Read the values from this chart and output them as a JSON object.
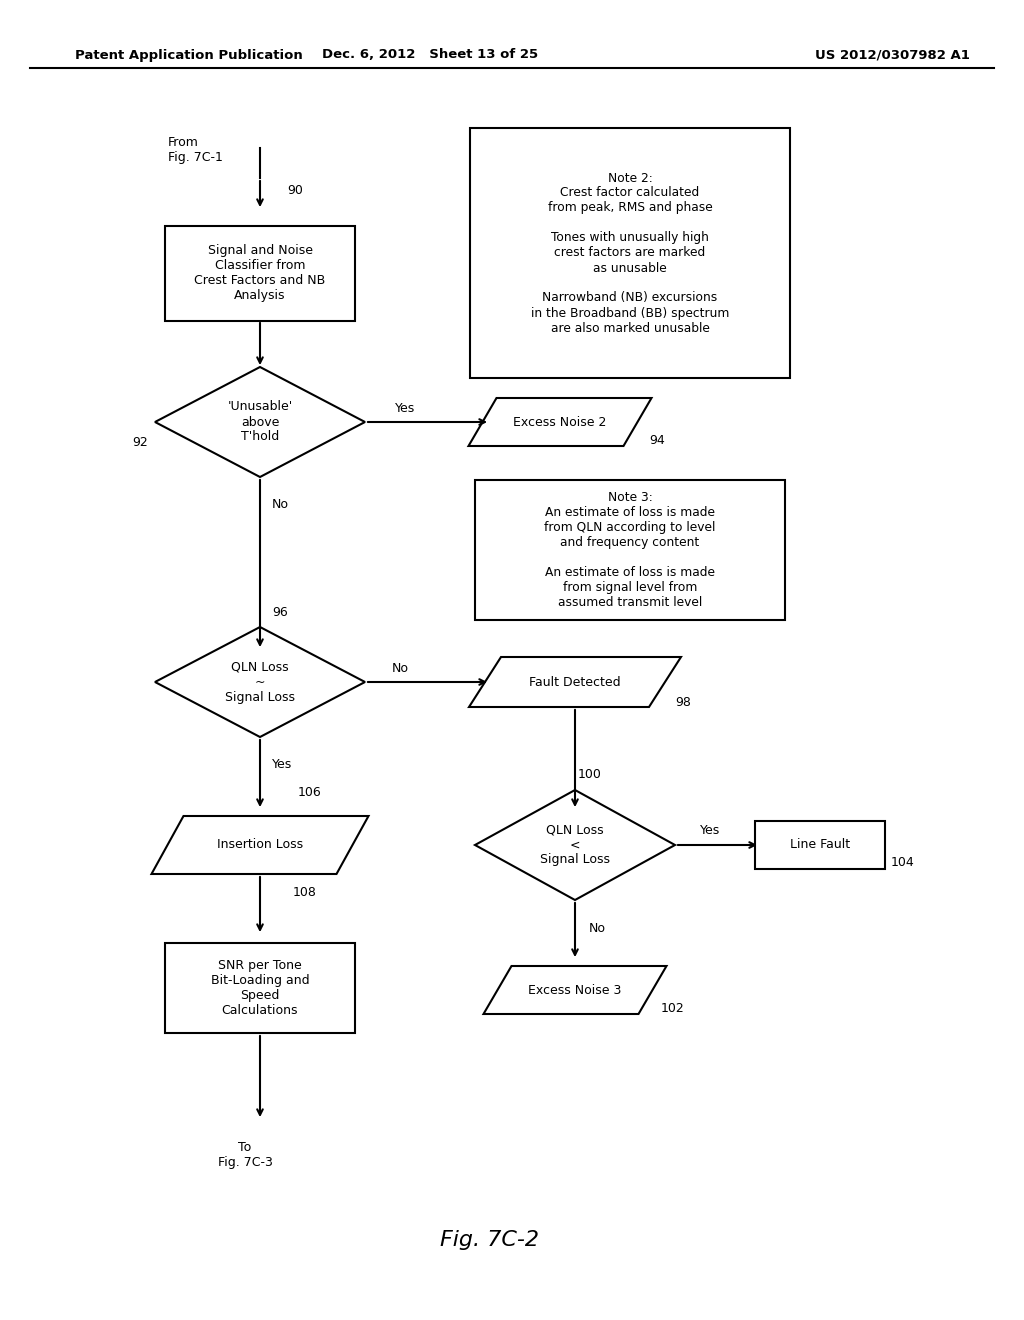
{
  "title": "Fig. 7C-2",
  "header_left": "Patent Application Publication",
  "header_mid": "Dec. 6, 2012   Sheet 13 of 25",
  "header_right": "US 2012/0307982 A1",
  "bg_color": "#ffffff",
  "text_color": "#000000",
  "from_text": "From\nFig. 7C-1",
  "to_text": "To\nFig. 7C-3",
  "fig_label": "Fig. 7C-2",
  "box90_text": "Signal and Noise\nClassifier from\nCrest Factors and NB\nAnalysis",
  "note2_text": "Note 2:\nCrest factor calculated\nfrom peak, RMS and phase\n\nTones with unusually high\ncrest factors are marked\nas unusable\n\nNarrowband (NB) excursions\nin the Broadband (BB) spectrum\nare also marked unusable",
  "diamond92_text": "'Unusable'\nabove\nT'hold",
  "excess2_text": "Excess Noise 2",
  "note3_text": "Note 3:\nAn estimate of loss is made\nfrom QLN according to level\nand frequency content\n\nAn estimate of loss is made\nfrom signal level from\nassumed transmit level",
  "diamond96_text": "QLN Loss\n~\nSignal Loss",
  "fault98_text": "Fault Detected",
  "diamond100_text": "QLN Loss\n<\nSignal Loss",
  "linefault_text": "Line Fault",
  "excess3_text": "Excess Noise 3",
  "insertion_text": "Insertion Loss",
  "snr_text": "SNR per Tone\nBit-Loading and\nSpeed\nCalculations"
}
